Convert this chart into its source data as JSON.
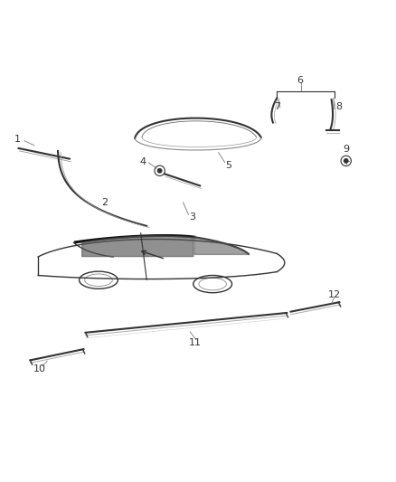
{
  "bg_color": "#ffffff",
  "line_color": "#333333",
  "label_color": "#333333",
  "lw_med": 1.5,
  "lw_thin": 1.0,
  "label_fs": 8
}
